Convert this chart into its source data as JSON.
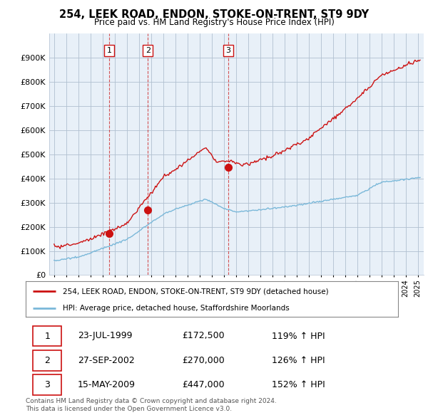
{
  "title": "254, LEEK ROAD, ENDON, STOKE-ON-TRENT, ST9 9DY",
  "subtitle": "Price paid vs. HM Land Registry's House Price Index (HPI)",
  "ylabel_ticks": [
    "£0",
    "£100K",
    "£200K",
    "£300K",
    "£400K",
    "£500K",
    "£600K",
    "£700K",
    "£800K",
    "£900K"
  ],
  "ylim": [
    0,
    1000000
  ],
  "yticks": [
    0,
    100000,
    200000,
    300000,
    400000,
    500000,
    600000,
    700000,
    800000,
    900000
  ],
  "sale_dates_num": [
    1999.55,
    2002.74,
    2009.37
  ],
  "sale_prices": [
    172500,
    270000,
    447000
  ],
  "sale_labels": [
    "1",
    "2",
    "3"
  ],
  "legend_line1": "254, LEEK ROAD, ENDON, STOKE-ON-TRENT, ST9 9DY (detached house)",
  "legend_line2": "HPI: Average price, detached house, Staffordshire Moorlands",
  "table_rows": [
    [
      "1",
      "23-JUL-1999",
      "£172,500",
      "119% ↑ HPI"
    ],
    [
      "2",
      "27-SEP-2002",
      "£270,000",
      "126% ↑ HPI"
    ],
    [
      "3",
      "15-MAY-2009",
      "£447,000",
      "152% ↑ HPI"
    ]
  ],
  "footer": "Contains HM Land Registry data © Crown copyright and database right 2024.\nThis data is licensed under the Open Government Licence v3.0.",
  "red_color": "#cc1111",
  "blue_color": "#7ab8d9",
  "plot_bg": "#e8f0f8",
  "background_color": "#ffffff",
  "grid_color": "#b0c0d0"
}
